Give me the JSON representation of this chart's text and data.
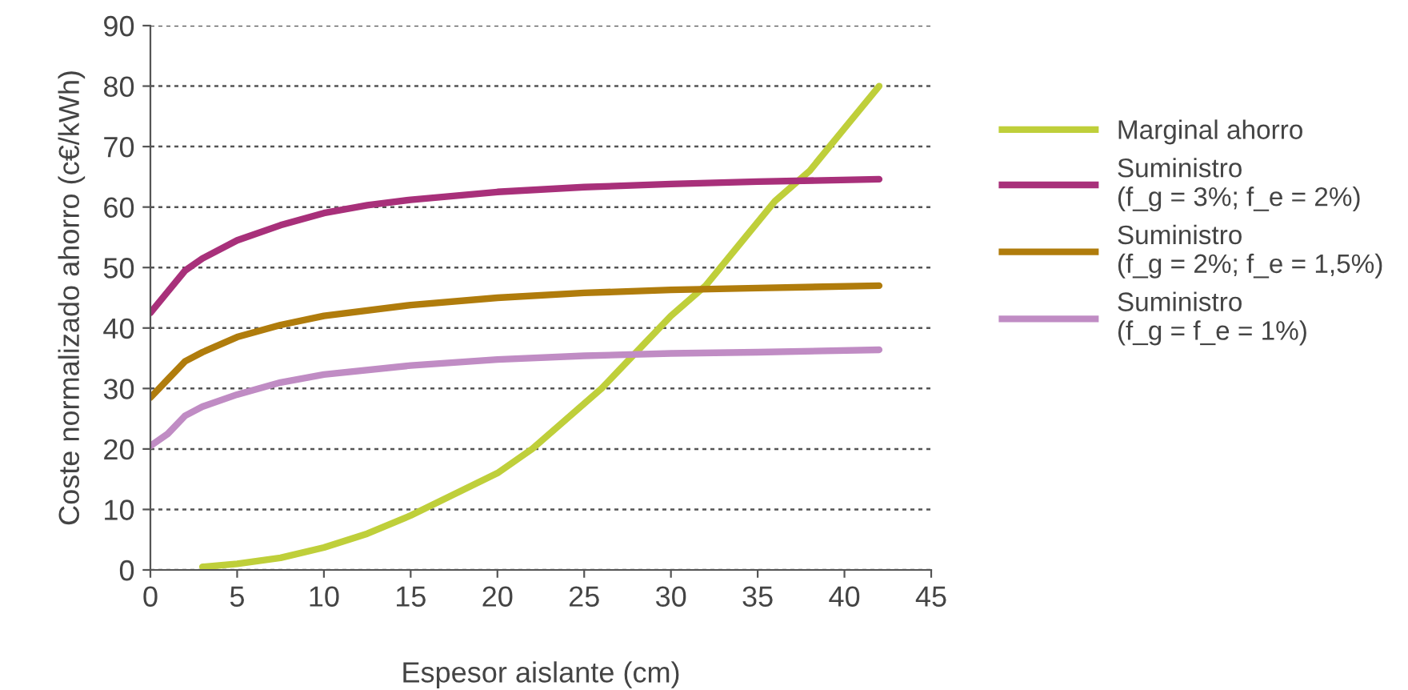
{
  "chart_data": {
    "type": "line",
    "xlabel": "Espesor aislante (cm)",
    "ylabel": "Coste normalizado ahorro (c€/kWh)",
    "xlim": [
      0,
      45
    ],
    "xticks": [
      0,
      5,
      10,
      15,
      20,
      25,
      30,
      35,
      40,
      45
    ],
    "ylim": [
      0,
      90
    ],
    "yticks": [
      0,
      10,
      20,
      30,
      40,
      50,
      60,
      70,
      80,
      90
    ],
    "grid": "y",
    "legend": "right",
    "marker": "none",
    "line_style": "solid",
    "series": [
      {
        "name": "Marginal ahorro",
        "color": "#bfcf3a",
        "x": [
          3,
          5,
          7.5,
          10,
          12.5,
          15,
          17.5,
          20,
          22,
          24,
          26,
          28,
          30,
          32,
          34,
          36,
          38,
          40,
          42
        ],
        "values": [
          0.5,
          1,
          2,
          3.7,
          6,
          9,
          12.5,
          16,
          20,
          25,
          30,
          36,
          42,
          47,
          54,
          61,
          66,
          73,
          80
        ]
      },
      {
        "name": "Suministro\n(f_g = 3%; f_e = 2%)",
        "color": "#a8307a",
        "x": [
          0,
          1,
          2,
          3,
          5,
          7.5,
          10,
          12.5,
          15,
          20,
          25,
          30,
          35,
          42
        ],
        "values": [
          42.5,
          46,
          49.5,
          51.5,
          54.5,
          57,
          59,
          60.3,
          61.2,
          62.5,
          63.3,
          63.8,
          64.2,
          64.6
        ]
      },
      {
        "name": "Suministro\n(f_g = 2%; f_e = 1,5%)",
        "color": "#b07c0c",
        "x": [
          0,
          1,
          2,
          3,
          5,
          7.5,
          10,
          15,
          20,
          25,
          30,
          35,
          42
        ],
        "values": [
          28.5,
          31.5,
          34.5,
          36,
          38.5,
          40.5,
          42,
          43.8,
          45,
          45.8,
          46.3,
          46.6,
          47
        ]
      },
      {
        "name": "Suministro\n(f_g = f_e = 1%)",
        "color": "#c08cc4",
        "x": [
          0,
          1,
          2,
          3,
          5,
          7.5,
          10,
          15,
          20,
          25,
          30,
          35,
          42
        ],
        "values": [
          20.5,
          22.5,
          25.5,
          27,
          29,
          31,
          32.3,
          33.8,
          34.8,
          35.4,
          35.8,
          36,
          36.4
        ]
      }
    ]
  }
}
